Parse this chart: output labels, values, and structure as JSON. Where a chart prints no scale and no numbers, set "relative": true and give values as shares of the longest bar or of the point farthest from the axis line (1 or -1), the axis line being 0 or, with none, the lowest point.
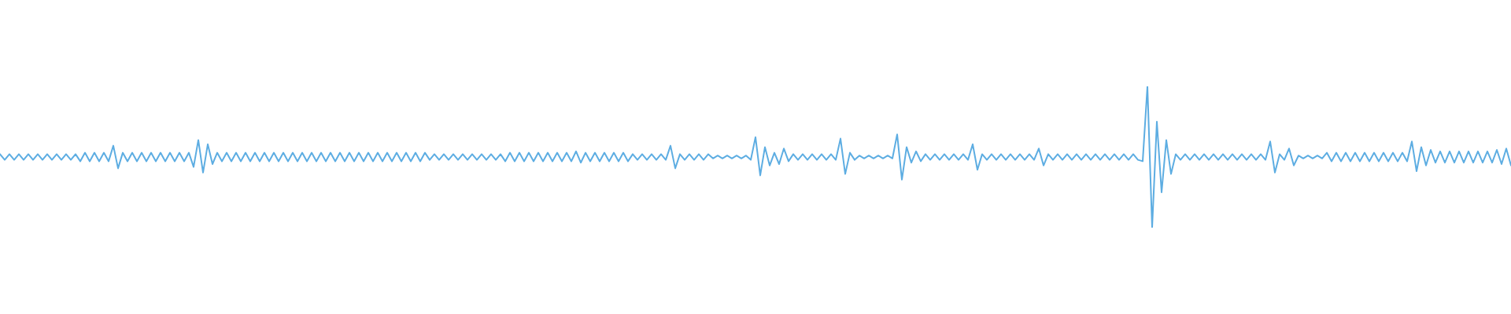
{
  "chart_data": {
    "type": "line",
    "relative": true,
    "marker": "none",
    "color": "#5dade2",
    "categories": [
      null,
      null,
      null,
      null,
      null,
      null,
      null,
      null,
      null,
      null,
      null,
      null,
      null,
      null,
      null,
      null,
      null,
      null,
      null,
      null,
      null,
      null,
      null,
      null,
      null,
      null,
      null,
      null,
      null,
      null,
      null,
      null,
      null,
      null,
      null,
      null,
      null,
      null,
      null,
      null,
      null,
      null,
      null,
      null,
      null,
      null,
      null,
      null,
      null,
      null,
      null,
      null,
      null,
      null,
      null,
      null,
      null,
      null,
      null,
      null,
      null,
      null,
      null,
      null,
      null,
      null,
      null,
      null,
      null,
      null,
      null,
      null,
      null,
      null,
      null,
      null,
      null,
      null,
      null,
      null,
      null,
      null,
      null,
      null,
      null,
      null,
      null,
      null,
      null,
      null,
      null,
      null,
      null,
      null,
      null,
      null,
      null,
      null,
      null,
      null,
      null,
      null,
      null,
      null,
      null,
      null,
      null,
      null,
      null,
      null,
      null,
      null,
      null,
      null,
      null,
      null,
      null,
      null,
      null,
      null,
      null,
      null,
      null,
      null,
      null,
      null,
      null,
      null,
      null,
      null,
      null,
      null,
      null,
      null,
      null,
      null,
      null,
      null,
      null,
      null,
      null,
      null,
      null,
      null,
      null,
      null,
      null,
      null,
      null,
      null,
      null,
      null,
      null,
      null,
      null,
      null,
      null,
      null,
      null,
      null,
      null,
      null,
      null,
      null,
      null,
      null,
      null,
      null,
      null,
      null,
      null,
      null,
      null,
      null,
      null,
      null,
      null,
      null,
      null,
      null,
      null,
      null,
      null,
      null,
      null,
      null,
      null,
      null,
      null,
      null,
      null,
      null,
      null,
      null,
      null,
      null,
      null,
      null,
      null,
      null,
      null,
      null,
      null,
      null,
      null,
      null,
      null,
      null,
      null,
      null,
      null,
      null,
      null,
      null,
      null,
      null,
      null,
      null,
      null,
      null,
      null,
      null,
      null,
      null,
      null,
      null,
      null,
      null,
      null,
      null,
      null,
      null,
      null,
      null,
      null,
      null,
      null,
      null,
      null,
      null,
      null,
      null,
      null,
      null,
      null,
      null,
      null,
      null,
      null,
      null,
      null,
      null,
      null,
      null,
      null,
      null,
      null,
      null,
      null,
      null,
      null,
      null,
      null,
      null,
      null,
      null,
      null,
      null,
      null,
      null,
      null,
      null,
      null,
      null,
      null,
      null,
      null,
      null,
      null,
      null,
      null,
      null,
      null,
      null,
      null,
      null,
      null,
      null,
      null,
      null,
      null,
      null,
      null,
      null,
      null,
      null,
      null,
      null,
      null,
      null,
      null,
      null,
      null,
      null,
      null,
      null,
      null,
      null,
      null,
      null,
      null,
      null,
      null,
      null,
      null,
      null,
      null,
      null,
      null,
      null,
      null
    ],
    "values": [
      0.52,
      0.48,
      0.52,
      0.48,
      0.52,
      0.48,
      0.52,
      0.48,
      0.52,
      0.48,
      0.52,
      0.48,
      0.52,
      0.48,
      0.52,
      0.48,
      0.52,
      0.47,
      0.53,
      0.47,
      0.53,
      0.47,
      0.53,
      0.47,
      0.58,
      0.42,
      0.53,
      0.47,
      0.53,
      0.47,
      0.53,
      0.47,
      0.53,
      0.47,
      0.53,
      0.47,
      0.53,
      0.47,
      0.53,
      0.47,
      0.53,
      0.43,
      0.62,
      0.39,
      0.59,
      0.45,
      0.53,
      0.47,
      0.53,
      0.47,
      0.53,
      0.47,
      0.53,
      0.47,
      0.53,
      0.47,
      0.53,
      0.47,
      0.53,
      0.47,
      0.53,
      0.47,
      0.53,
      0.47,
      0.53,
      0.47,
      0.53,
      0.47,
      0.53,
      0.47,
      0.53,
      0.47,
      0.53,
      0.47,
      0.53,
      0.47,
      0.53,
      0.47,
      0.53,
      0.47,
      0.53,
      0.47,
      0.53,
      0.47,
      0.53,
      0.47,
      0.53,
      0.47,
      0.53,
      0.47,
      0.53,
      0.48,
      0.52,
      0.48,
      0.52,
      0.48,
      0.52,
      0.48,
      0.52,
      0.48,
      0.52,
      0.48,
      0.52,
      0.48,
      0.52,
      0.48,
      0.52,
      0.47,
      0.53,
      0.47,
      0.53,
      0.47,
      0.53,
      0.47,
      0.53,
      0.47,
      0.53,
      0.47,
      0.53,
      0.47,
      0.53,
      0.47,
      0.54,
      0.46,
      0.53,
      0.47,
      0.53,
      0.47,
      0.53,
      0.47,
      0.53,
      0.47,
      0.53,
      0.47,
      0.52,
      0.48,
      0.52,
      0.48,
      0.52,
      0.48,
      0.52,
      0.48,
      0.58,
      0.42,
      0.52,
      0.48,
      0.52,
      0.48,
      0.52,
      0.48,
      0.52,
      0.49,
      0.51,
      0.49,
      0.51,
      0.49,
      0.51,
      0.49,
      0.51,
      0.48,
      0.64,
      0.37,
      0.57,
      0.44,
      0.53,
      0.45,
      0.56,
      0.47,
      0.52,
      0.48,
      0.52,
      0.48,
      0.52,
      0.48,
      0.52,
      0.48,
      0.52,
      0.48,
      0.63,
      0.38,
      0.53,
      0.48,
      0.51,
      0.49,
      0.51,
      0.49,
      0.51,
      0.49,
      0.51,
      0.49,
      0.66,
      0.34,
      0.57,
      0.46,
      0.54,
      0.47,
      0.52,
      0.48,
      0.52,
      0.48,
      0.52,
      0.48,
      0.52,
      0.48,
      0.52,
      0.48,
      0.59,
      0.41,
      0.52,
      0.48,
      0.52,
      0.48,
      0.52,
      0.48,
      0.52,
      0.48,
      0.52,
      0.48,
      0.52,
      0.48,
      0.56,
      0.44,
      0.52,
      0.48,
      0.52,
      0.48,
      0.52,
      0.48,
      0.52,
      0.48,
      0.52,
      0.48,
      0.52,
      0.48,
      0.52,
      0.48,
      0.52,
      0.48,
      0.52,
      0.48,
      0.52,
      0.48,
      0.47,
      1,
      0,
      0.75,
      0.25,
      0.62,
      0.38,
      0.52,
      0.48,
      0.52,
      0.48,
      0.52,
      0.48,
      0.52,
      0.48,
      0.52,
      0.48,
      0.52,
      0.48,
      0.52,
      0.48,
      0.52,
      0.48,
      0.52,
      0.48,
      0.52,
      0.48,
      0.61,
      0.39,
      0.52,
      0.48,
      0.56,
      0.44,
      0.51,
      0.49,
      0.51,
      0.49,
      0.51,
      0.49,
      0.53,
      0.47,
      0.53,
      0.47,
      0.53,
      0.47,
      0.53,
      0.47,
      0.53,
      0.47,
      0.53,
      0.47,
      0.53,
      0.47,
      0.53,
      0.47,
      0.53,
      0.47,
      0.61,
      0.4,
      0.57,
      0.44,
      0.55,
      0.46,
      0.54,
      0.46,
      0.54,
      0.46,
      0.54,
      0.46,
      0.54,
      0.46,
      0.54,
      0.46,
      0.54,
      0.46,
      0.55,
      0.45,
      0.56,
      0.44
    ]
  }
}
